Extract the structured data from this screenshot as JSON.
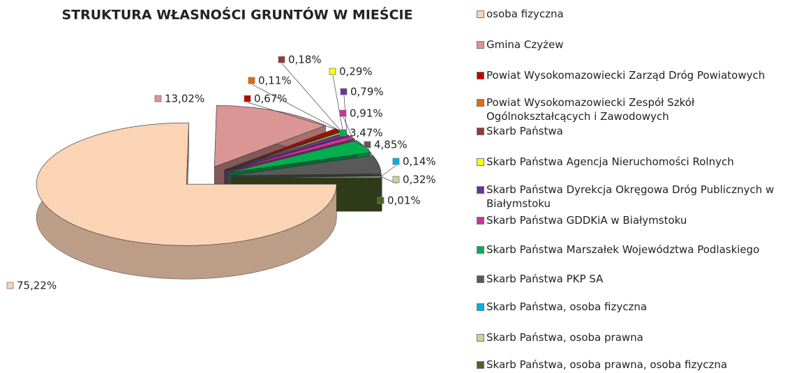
{
  "chart_data": {
    "type": "pie3d",
    "title": "STRUKTURA WŁASNOŚCI GRUNTÓW W MIEŚCIE",
    "categories": [
      "osoba fizyczna",
      "Gmina Czyżew",
      "Powiat Wysokomazowiecki Zarząd Dróg Powiatowych",
      "Powiat Wysokomazowiecki Zespół Szkół Ogólnokształcących i Zawodowych",
      "Skarb Państwa",
      "Skarb Państwa Agencja Nieruchomości Rolnych",
      "Skarb Państwa Dyrekcja Okręgowa Dróg Publicznych w Białymstoku",
      "Skarb Państwa GDDKiA w Białymstoku",
      "Skarb Państwa Marszałek Województwa Podlaskiego",
      "Skarb Państwa PKP SA",
      "Skarb Państwa, osoba fizyczna",
      "Skarb Państwa, osoba prawna",
      "Skarb Państwa, osoba prawna, osoba fizyczna"
    ],
    "values": [
      75.22,
      13.02,
      0.67,
      0.11,
      0.18,
      0.29,
      0.79,
      0.91,
      3.47,
      4.85,
      0.14,
      0.32,
      0.01
    ],
    "value_labels": [
      "75,22%",
      "13,02%",
      "0,67%",
      "0,11%",
      "0,18%",
      "0,29%",
      "0,79%",
      "0,91%",
      "3,47%",
      "4,85%",
      "0,14%",
      "0,32%",
      "0,01%"
    ],
    "colors": [
      "#fbd3b5",
      "#d99694",
      "#c00000",
      "#e36c09",
      "#953735",
      "#ffff00",
      "#7030a0",
      "#cc3399",
      "#00b050",
      "#595959",
      "#00b0f0",
      "#c4d79b",
      "#4f6228"
    ],
    "legend": "right"
  }
}
